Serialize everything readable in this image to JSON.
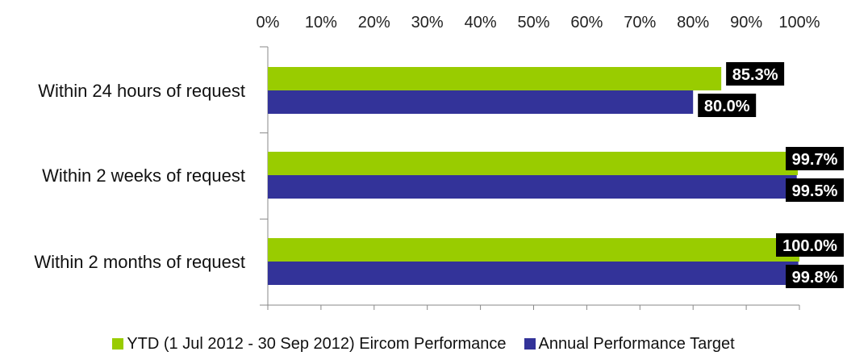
{
  "chart_data": {
    "type": "bar",
    "orientation": "horizontal",
    "categories": [
      "Within 24 hours of request",
      "Within 2 weeks of request",
      "Within 2 months of request"
    ],
    "series": [
      {
        "name": "YTD (1 Jul 2012 - 30 Sep 2012) Eircom Performance",
        "color": "#99CC00",
        "values": [
          85.3,
          99.7,
          100.0
        ],
        "labels": [
          "85.3%",
          "99.7%",
          "100.0%"
        ]
      },
      {
        "name": "Annual Performance Target",
        "color": "#333399",
        "values": [
          80.0,
          99.5,
          99.8
        ],
        "labels": [
          "80.0%",
          "99.5%",
          "99.8%"
        ]
      }
    ],
    "xlim": [
      0,
      100
    ],
    "xticks": [
      "0%",
      "10%",
      "20%",
      "30%",
      "40%",
      "50%",
      "60%",
      "70%",
      "80%",
      "90%",
      "100%"
    ],
    "axis_position": "top",
    "grid": false,
    "legend_position": "bottom",
    "data_label_style": "white text on black box"
  }
}
